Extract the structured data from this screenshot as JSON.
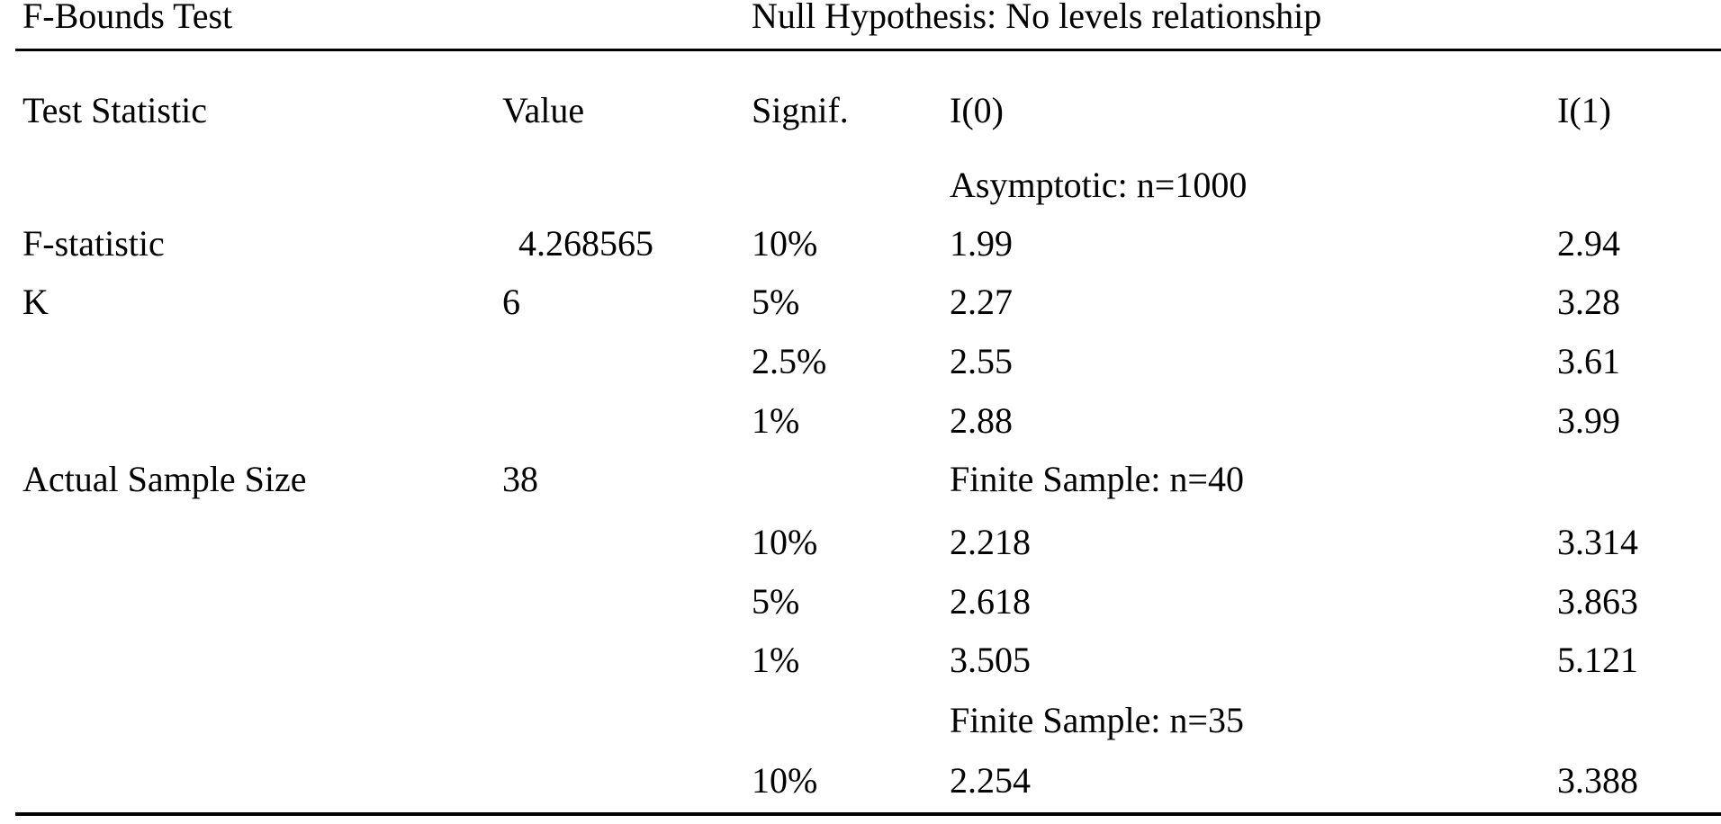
{
  "colors": {
    "background": "#ffffff",
    "text": "#000000",
    "rule": "#000000"
  },
  "table": {
    "title": "F-Bounds Test",
    "null_hypothesis": "Null Hypothesis: No levels relationship",
    "columns": [
      "Test Statistic",
      "Value",
      "Signif.",
      "I(0)",
      "I(1)"
    ],
    "rows": [
      {
        "cells": [
          "",
          "",
          "",
          "Asymptotic: n=1000",
          ""
        ]
      },
      {
        "cells": [
          "F-statistic",
          "4.268565",
          "10%",
          "1.99",
          "2.94"
        ]
      },
      {
        "cells": [
          "K",
          "6",
          "5%",
          "2.27",
          "3.28"
        ]
      },
      {
        "cells": [
          "",
          "",
          "2.5%",
          "2.55",
          "3.61"
        ]
      },
      {
        "cells": [
          "",
          "",
          "1%",
          "2.88",
          "3.99"
        ]
      },
      {
        "cells": [
          "Actual Sample Size",
          "38",
          "",
          "Finite Sample: n=40",
          ""
        ]
      },
      {
        "cells": [
          "",
          "",
          "10%",
          "2.218",
          "3.314"
        ]
      },
      {
        "cells": [
          "",
          "",
          "5%",
          "2.618",
          "3.863"
        ]
      },
      {
        "cells": [
          "",
          "",
          "1%",
          "3.505",
          "5.121"
        ]
      },
      {
        "cells": [
          "",
          "",
          "",
          "Finite Sample: n=35",
          ""
        ]
      },
      {
        "cells": [
          "",
          "",
          "10%",
          "2.254",
          "3.388"
        ]
      }
    ]
  }
}
